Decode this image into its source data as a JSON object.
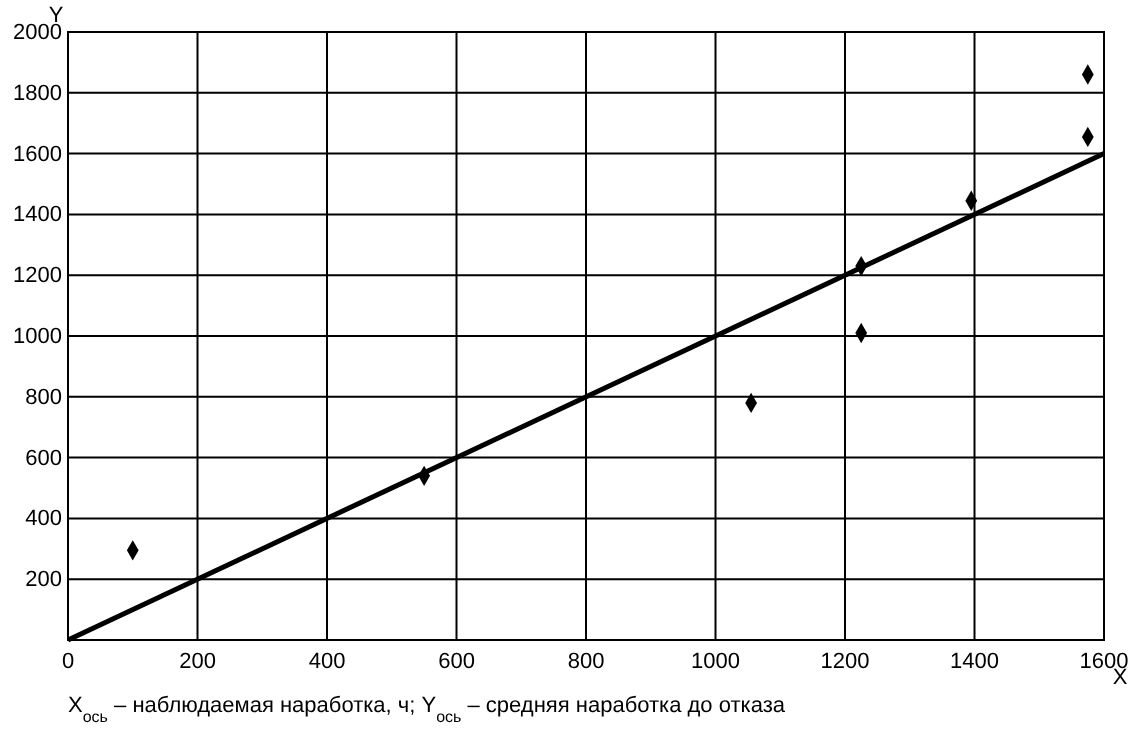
{
  "chart_data": {
    "type": "scatter",
    "xlabel": "X",
    "ylabel": "Y",
    "xlim": [
      0,
      1600
    ],
    "ylim": [
      0,
      2000
    ],
    "xticks": [
      0,
      200,
      400,
      600,
      800,
      1000,
      1200,
      1400,
      1600
    ],
    "yticks": [
      {
        "value": 0,
        "label": null
      },
      200,
      400,
      600,
      800,
      1000,
      1200,
      1400,
      1600,
      1800,
      2000
    ],
    "grid": true,
    "series": [
      {
        "color": "#000000",
        "marker": "diamond",
        "x": [
          100,
          550,
          1055,
          1225,
          1225,
          1395,
          1575,
          1575
        ],
        "values": [
          295,
          540,
          780,
          1010,
          1230,
          1445,
          1860,
          1655
        ]
      },
      {
        "type": "line",
        "color": "#000000",
        "line_style": "solid",
        "marker": "none",
        "x": [
          0,
          1600
        ],
        "values": [
          0,
          1600
        ]
      }
    ],
    "annotations": [
      "X$_{ось}$ –  наблюдаемая наработка, ч; Y$_{ось}$ – средняя наработка до отказа"
    ]
  }
}
